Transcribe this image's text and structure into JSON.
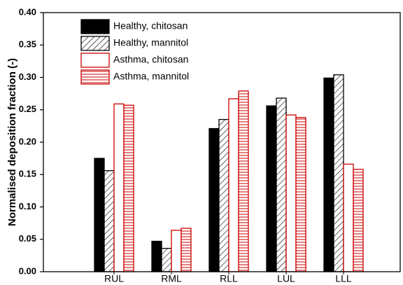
{
  "chart_data": {
    "type": "bar",
    "y_label": "Normalised deposition fraction (-)",
    "categories": [
      "RUL",
      "RML",
      "RLL",
      "LUL",
      "LLL"
    ],
    "series": [
      {
        "name": "Healthy, chitosan",
        "color": "#000000",
        "pattern": "solid",
        "values": [
          0.175,
          0.047,
          0.221,
          0.256,
          0.299
        ]
      },
      {
        "name": "Healthy, mannitol",
        "color": "#000000",
        "pattern": "diagonal",
        "values": [
          0.156,
          0.036,
          0.235,
          0.268,
          0.304
        ]
      },
      {
        "name": "Asthma, chitosan",
        "color": "#cc0000",
        "pattern": "none",
        "values": [
          0.259,
          0.064,
          0.267,
          0.242,
          0.166
        ]
      },
      {
        "name": "Asthma, mannitol",
        "color": "#cc0000",
        "pattern": "horizontal",
        "values": [
          0.257,
          0.067,
          0.279,
          0.238,
          0.158
        ]
      }
    ],
    "ylim": [
      0,
      0.4
    ],
    "yticks": [
      {
        "value": 0,
        "label": "0.00"
      },
      {
        "value": 0.05,
        "label": "0.05"
      },
      {
        "value": 0.1,
        "label": "0.10"
      },
      {
        "value": 0.15,
        "label": "0.15"
      },
      {
        "value": 0.2,
        "label": "0.20"
      },
      {
        "value": 0.25,
        "label": "0.25"
      },
      {
        "value": 0.3,
        "label": "0.30"
      },
      {
        "value": 0.35,
        "label": "0.35"
      },
      {
        "value": 0.4,
        "label": "0.40"
      }
    ],
    "legend": "upper-left"
  }
}
